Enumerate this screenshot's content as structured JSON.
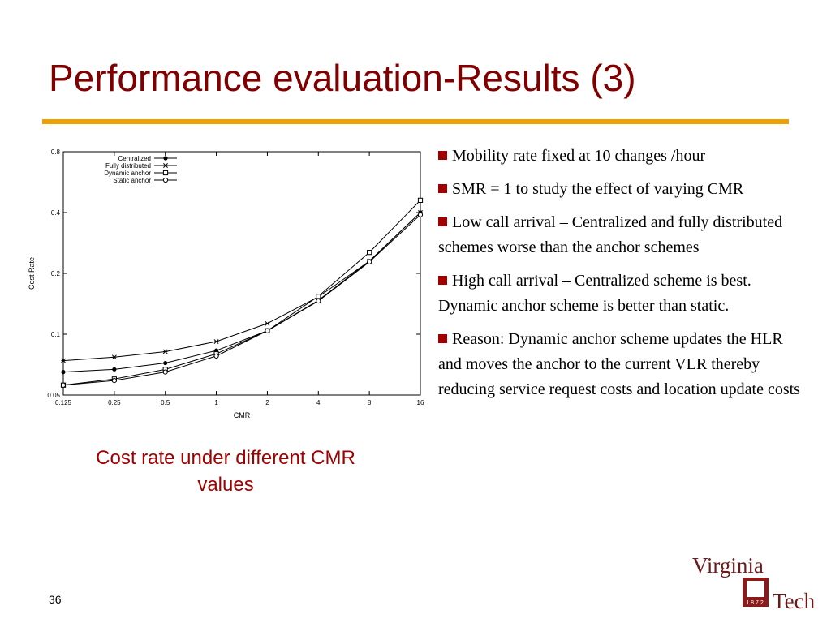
{
  "title": "Performance evaluation-Results (3)",
  "bullets": [
    "Mobility rate fixed at 10 changes /hour",
    "SMR = 1 to study the effect of varying CMR",
    "Low call arrival – Centralized and fully distributed schemes worse than the anchor schemes",
    "High call arrival – Centralized scheme is best. Dynamic anchor scheme is better than static.",
    "Reason: Dynamic anchor scheme updates the HLR and moves the anchor to the current VLR thereby reducing service request costs and location update costs"
  ],
  "caption": [
    "Cost rate under different CMR",
    "values"
  ],
  "page_number": "36",
  "logo": {
    "line1": "Virginia",
    "line2": "Tech",
    "digits": "1872"
  },
  "chart_data": {
    "type": "line",
    "xlabel": "CMR",
    "ylabel": "Cost Rate",
    "x": [
      0.125,
      0.25,
      0.5,
      1,
      2,
      4,
      8,
      16
    ],
    "series": [
      {
        "name": "Centralized",
        "color": "#000000",
        "marker": "filled-circle",
        "values": [
          0.065,
          0.067,
          0.072,
          0.083,
          0.104,
          0.147,
          0.23,
          0.4
        ]
      },
      {
        "name": "Fully distributed",
        "color": "#000000",
        "marker": "star",
        "values": [
          0.074,
          0.077,
          0.082,
          0.092,
          0.113,
          0.153,
          0.23,
          0.4
        ]
      },
      {
        "name": "Dynamic anchor",
        "color": "#000000",
        "marker": "square",
        "values": [
          0.056,
          0.06,
          0.067,
          0.08,
          0.104,
          0.154,
          0.254,
          0.46
        ]
      },
      {
        "name": "Static anchor",
        "color": "#000000",
        "marker": "open-circle",
        "values": [
          0.056,
          0.059,
          0.065,
          0.078,
          0.104,
          0.146,
          0.228,
          0.39
        ]
      }
    ],
    "xlim": [
      0.125,
      16
    ],
    "xticks": [
      0.125,
      0.25,
      0.5,
      1,
      2,
      4,
      8,
      16
    ],
    "ylim": [
      0.05,
      0.8
    ],
    "yticks": [
      0.05,
      0.1,
      0.2,
      0.4,
      0.8
    ],
    "xscale": "log",
    "yscale": "log",
    "grid": false,
    "legend": "upper-left"
  }
}
